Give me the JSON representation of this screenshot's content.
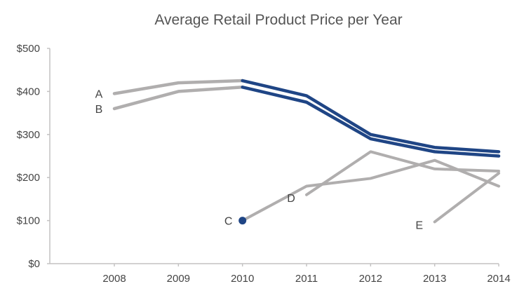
{
  "chart_data": {
    "type": "line",
    "title": "Average Retail Product Price per Year",
    "xlabel": "",
    "ylabel": "",
    "x": [
      2008,
      2009,
      2010,
      2011,
      2012,
      2013,
      2014
    ],
    "x_tick_labels": [
      "2008",
      "2009",
      "2010",
      "2011",
      "2012",
      "2013",
      "2014"
    ],
    "ylim": [
      0,
      500
    ],
    "y_ticks": [
      0,
      100,
      200,
      300,
      400,
      500
    ],
    "y_tick_labels": [
      "$0",
      "$100",
      "$200",
      "$300",
      "$400",
      "$500"
    ],
    "grid": false,
    "legend": "none (direct labels)",
    "series": [
      {
        "name": "A",
        "color": "#b0aeae",
        "highlight_from": 2010,
        "highlight_color": "#1f4585",
        "x": [
          2008,
          2009,
          2010,
          2011,
          2012,
          2013,
          2014
        ],
        "values": [
          395,
          420,
          425,
          390,
          300,
          270,
          260
        ],
        "label_at": "start"
      },
      {
        "name": "B",
        "color": "#b0aeae",
        "highlight_from": 2010,
        "highlight_color": "#1f4585",
        "x": [
          2008,
          2009,
          2010,
          2011,
          2012,
          2013,
          2014
        ],
        "values": [
          360,
          400,
          410,
          375,
          290,
          260,
          250
        ],
        "label_at": "start"
      },
      {
        "name": "C",
        "color": "#b0aeae",
        "marker_color": "#1f4585",
        "x": [
          2010,
          2011,
          2012,
          2013,
          2014
        ],
        "values": [
          100,
          180,
          198,
          240,
          180
        ],
        "label_at": "start"
      },
      {
        "name": "D",
        "color": "#b0aeae",
        "x": [
          2011,
          2012,
          2013,
          2014
        ],
        "values": [
          160,
          260,
          220,
          215
        ],
        "label_at": "start"
      },
      {
        "name": "E",
        "color": "#b0aeae",
        "x": [
          2013,
          2014
        ],
        "values": [
          97,
          210
        ],
        "label_at": "start"
      }
    ]
  }
}
